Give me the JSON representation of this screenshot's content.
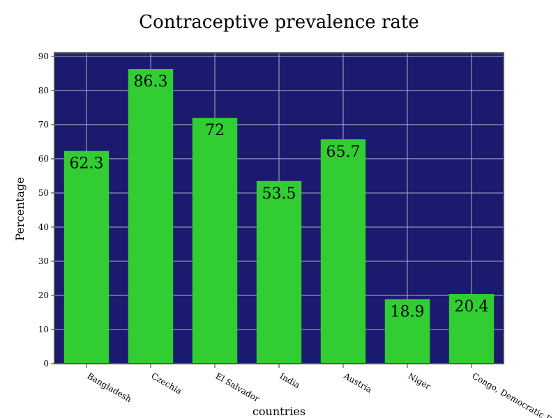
{
  "chart_data": {
    "type": "bar",
    "title": "Contraceptive prevalence rate",
    "xlabel": "countries",
    "ylabel": "Percentage",
    "categories": [
      "Bangladesh",
      "Czechia",
      "El Salvador",
      "India",
      "Austria",
      "Niger",
      "Congo, Democratic R"
    ],
    "values": [
      62.3,
      86.3,
      72,
      53.5,
      65.7,
      18.9,
      20.4
    ],
    "value_labels": [
      "62.3",
      "86.3",
      "72",
      "53.5",
      "65.7",
      "18.9",
      "20.4"
    ],
    "ylim": [
      0,
      91
    ],
    "yticks": [
      0,
      10,
      20,
      30,
      40,
      50,
      60,
      70,
      80,
      90
    ],
    "grid": true,
    "colors": {
      "plot_background": "#1a1a6e",
      "bar": "#32cd32",
      "grid": "#b0b0c8",
      "frame": "#555555"
    }
  }
}
